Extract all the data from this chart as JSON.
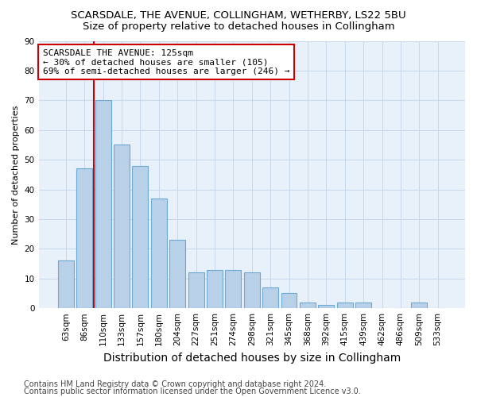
{
  "title": "SCARSDALE, THE AVENUE, COLLINGHAM, WETHERBY, LS22 5BU",
  "subtitle": "Size of property relative to detached houses in Collingham",
  "xlabel": "Distribution of detached houses by size in Collingham",
  "ylabel": "Number of detached properties",
  "categories": [
    "63sqm",
    "86sqm",
    "110sqm",
    "133sqm",
    "157sqm",
    "180sqm",
    "204sqm",
    "227sqm",
    "251sqm",
    "274sqm",
    "298sqm",
    "321sqm",
    "345sqm",
    "368sqm",
    "392sqm",
    "415sqm",
    "439sqm",
    "462sqm",
    "486sqm",
    "509sqm",
    "533sqm"
  ],
  "values": [
    16,
    47,
    70,
    55,
    48,
    37,
    23,
    12,
    13,
    13,
    12,
    7,
    5,
    2,
    1,
    2,
    2,
    0,
    0,
    2,
    0
  ],
  "bar_color": "#b8d0e8",
  "bar_edge_color": "#6aaad4",
  "grid_color": "#c8d8ec",
  "bg_color": "#e8f0fa",
  "vline_color": "#cc0000",
  "annotation_text": "SCARSDALE THE AVENUE: 125sqm\n← 30% of detached houses are smaller (105)\n69% of semi-detached houses are larger (246) →",
  "annotation_box_color": "white",
  "annotation_box_edge": "#cc0000",
  "ylim": [
    0,
    90
  ],
  "yticks": [
    0,
    10,
    20,
    30,
    40,
    50,
    60,
    70,
    80,
    90
  ],
  "footer_line1": "Contains HM Land Registry data © Crown copyright and database right 2024.",
  "footer_line2": "Contains public sector information licensed under the Open Government Licence v3.0.",
  "title_fontsize": 9.5,
  "subtitle_fontsize": 9.5,
  "xlabel_fontsize": 10,
  "ylabel_fontsize": 8,
  "tick_fontsize": 7.5,
  "footer_fontsize": 7,
  "annotation_fontsize": 8
}
